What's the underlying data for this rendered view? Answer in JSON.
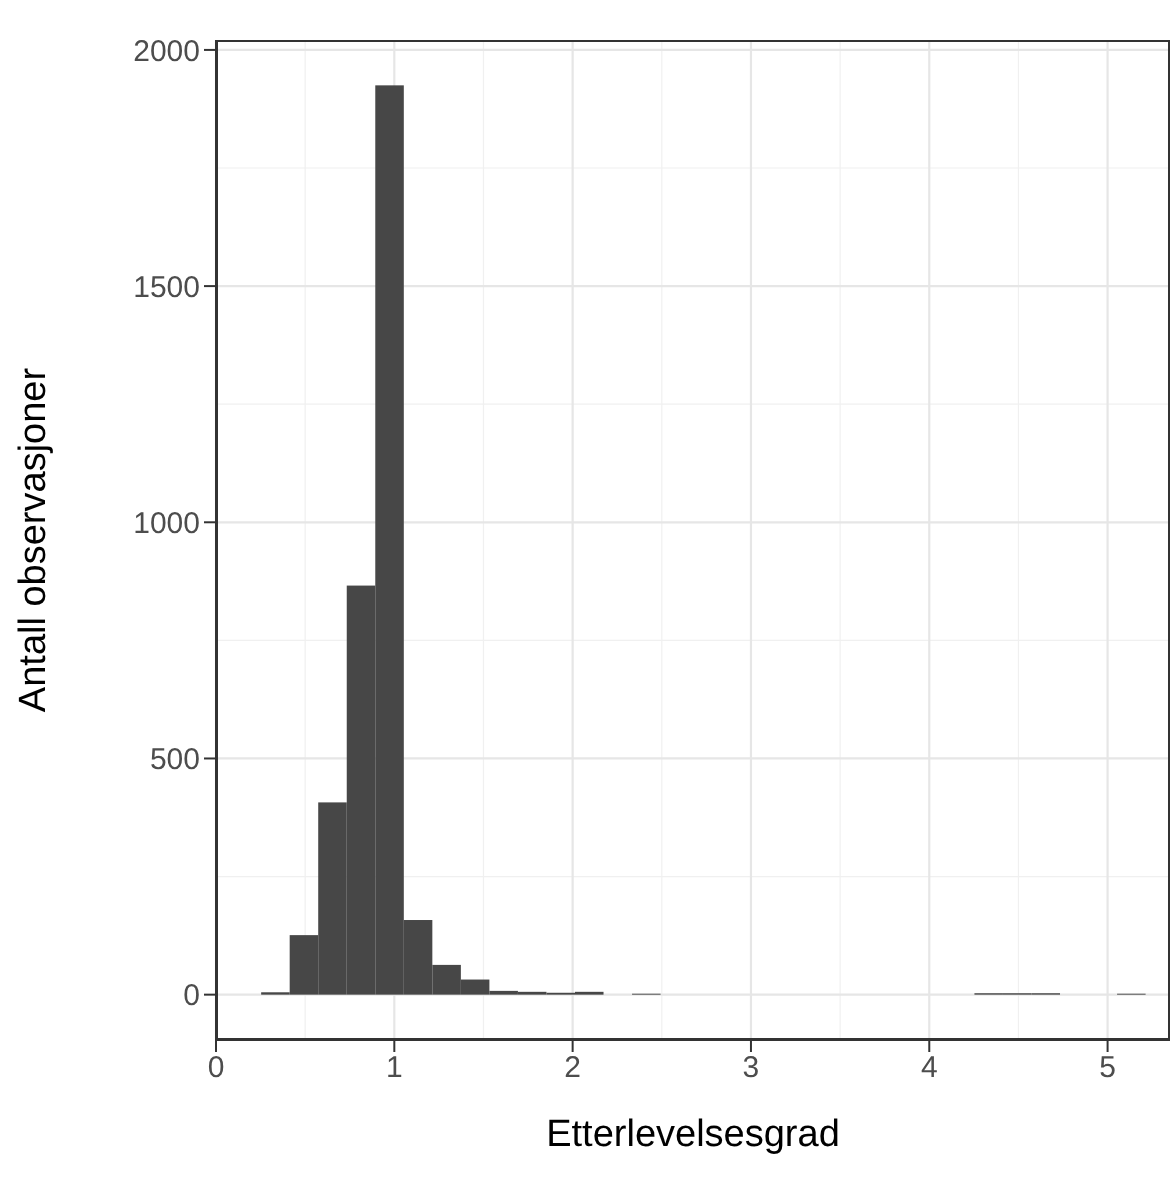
{
  "chart_data": {
    "type": "histogram",
    "xlabel": "Etterlevelsesgrad",
    "ylabel": "Antall observasjoner",
    "bins": [
      0.25,
      0.41,
      0.57,
      0.73,
      0.89,
      1.05,
      1.21,
      1.37,
      1.53,
      1.69,
      1.85,
      2.01,
      2.17,
      2.33,
      2.49,
      2.65,
      2.81,
      2.97,
      3.13,
      3.29,
      3.45,
      3.61,
      3.77,
      3.93,
      4.09,
      4.25,
      4.41,
      4.57,
      4.73,
      4.89,
      5.05,
      5.21
    ],
    "values": [
      5,
      126,
      407,
      866,
      1925,
      158,
      63,
      32,
      8,
      6,
      4,
      6,
      0,
      2,
      0,
      0,
      0,
      0,
      0,
      0,
      0,
      0,
      0,
      0,
      0,
      3,
      3,
      3,
      0,
      0,
      2
    ],
    "color": "#474747",
    "xlim": [
      0,
      5.35
    ],
    "xticks": [
      0,
      1,
      2,
      3,
      4,
      5
    ],
    "ylim": [
      -96,
      2021
    ],
    "yticks": [
      0,
      500,
      1000,
      1500,
      2000
    ],
    "grid": true
  }
}
